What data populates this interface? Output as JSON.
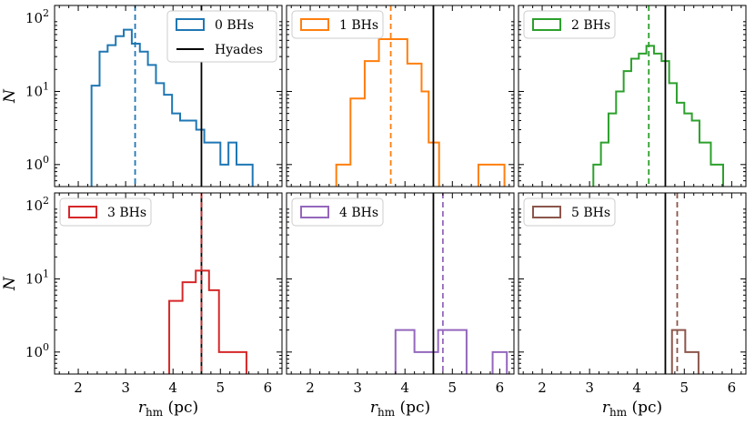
{
  "chart_data": [
    {
      "type": "histogram",
      "legend": "0 BHs",
      "color": "#1f77b4",
      "bins": [
        {
          "x0": 2.28,
          "x1": 2.45,
          "n": 12
        },
        {
          "x0": 2.45,
          "x1": 2.62,
          "n": 35
        },
        {
          "x0": 2.62,
          "x1": 2.79,
          "n": 43
        },
        {
          "x0": 2.79,
          "x1": 2.96,
          "n": 57
        },
        {
          "x0": 2.96,
          "x1": 3.13,
          "n": 70
        },
        {
          "x0": 3.13,
          "x1": 3.3,
          "n": 45
        },
        {
          "x0": 3.3,
          "x1": 3.47,
          "n": 35
        },
        {
          "x0": 3.47,
          "x1": 3.64,
          "n": 23
        },
        {
          "x0": 3.64,
          "x1": 3.81,
          "n": 13
        },
        {
          "x0": 3.81,
          "x1": 3.98,
          "n": 9
        },
        {
          "x0": 3.98,
          "x1": 4.15,
          "n": 5
        },
        {
          "x0": 4.15,
          "x1": 4.32,
          "n": 4
        },
        {
          "x0": 4.32,
          "x1": 4.49,
          "n": 4
        },
        {
          "x0": 4.49,
          "x1": 4.66,
          "n": 3
        },
        {
          "x0": 4.66,
          "x1": 4.83,
          "n": 2
        },
        {
          "x0": 4.83,
          "x1": 5.0,
          "n": 2
        },
        {
          "x0": 5.0,
          "x1": 5.17,
          "n": 1
        },
        {
          "x0": 5.17,
          "x1": 5.34,
          "n": 2
        },
        {
          "x0": 5.34,
          "x1": 5.51,
          "n": 1
        },
        {
          "x0": 5.51,
          "x1": 5.68,
          "n": 1
        },
        {
          "x0": 5.68,
          "x1": 5.85,
          "n": 0
        }
      ],
      "median": 3.2,
      "hyades": 4.6,
      "show_hyades_legend": true
    },
    {
      "type": "histogram",
      "legend": "1 BHs",
      "color": "#ff7f0e",
      "bins": [
        {
          "x0": 2.55,
          "x1": 2.85,
          "n": 1
        },
        {
          "x0": 2.85,
          "x1": 3.15,
          "n": 8
        },
        {
          "x0": 3.15,
          "x1": 3.45,
          "n": 26
        },
        {
          "x0": 3.45,
          "x1": 3.75,
          "n": 52
        },
        {
          "x0": 3.75,
          "x1": 4.05,
          "n": 52
        },
        {
          "x0": 4.05,
          "x1": 4.35,
          "n": 24
        },
        {
          "x0": 4.35,
          "x1": 4.5,
          "n": 10
        },
        {
          "x0": 4.5,
          "x1": 4.72,
          "n": 2
        },
        {
          "x0": 5.55,
          "x1": 6.1,
          "n": 1
        }
      ],
      "median": 3.7,
      "hyades": 4.6,
      "show_hyades_legend": false
    },
    {
      "type": "histogram",
      "legend": "2 BHs",
      "color": "#2ca02c",
      "bins": [
        {
          "x0": 3.08,
          "x1": 3.24,
          "n": 1
        },
        {
          "x0": 3.24,
          "x1": 3.4,
          "n": 2
        },
        {
          "x0": 3.4,
          "x1": 3.56,
          "n": 5
        },
        {
          "x0": 3.56,
          "x1": 3.72,
          "n": 10
        },
        {
          "x0": 3.72,
          "x1": 3.88,
          "n": 19
        },
        {
          "x0": 3.88,
          "x1": 4.04,
          "n": 28
        },
        {
          "x0": 4.04,
          "x1": 4.2,
          "n": 33
        },
        {
          "x0": 4.2,
          "x1": 4.36,
          "n": 42
        },
        {
          "x0": 4.36,
          "x1": 4.52,
          "n": 33
        },
        {
          "x0": 4.52,
          "x1": 4.68,
          "n": 26
        },
        {
          "x0": 4.68,
          "x1": 4.84,
          "n": 13
        },
        {
          "x0": 4.84,
          "x1": 5.0,
          "n": 7
        },
        {
          "x0": 5.0,
          "x1": 5.16,
          "n": 5
        },
        {
          "x0": 5.16,
          "x1": 5.32,
          "n": 4
        },
        {
          "x0": 5.32,
          "x1": 5.56,
          "n": 2
        },
        {
          "x0": 5.56,
          "x1": 5.82,
          "n": 1
        }
      ],
      "median": 4.25,
      "hyades": 4.6,
      "show_hyades_legend": false
    },
    {
      "type": "histogram",
      "legend": "3 BHs",
      "color": "#d62728",
      "bins": [
        {
          "x0": 3.92,
          "x1": 4.2,
          "n": 5
        },
        {
          "x0": 4.2,
          "x1": 4.48,
          "n": 9
        },
        {
          "x0": 4.48,
          "x1": 4.76,
          "n": 13
        },
        {
          "x0": 4.76,
          "x1": 4.97,
          "n": 7
        },
        {
          "x0": 4.97,
          "x1": 5.55,
          "n": 1
        }
      ],
      "median": 4.6,
      "hyades": 4.6,
      "show_hyades_legend": false
    },
    {
      "type": "histogram",
      "legend": "4 BHs",
      "color": "#9467bd",
      "bins": [
        {
          "x0": 3.8,
          "x1": 4.2,
          "n": 2
        },
        {
          "x0": 4.2,
          "x1": 4.7,
          "n": 1
        },
        {
          "x0": 4.7,
          "x1": 5.3,
          "n": 2
        },
        {
          "x0": 5.85,
          "x1": 6.15,
          "n": 1
        }
      ],
      "median": 4.8,
      "hyades": 4.6,
      "show_hyades_legend": false
    },
    {
      "type": "histogram",
      "legend": "5 BHs",
      "color": "#8c564b",
      "bins": [
        {
          "x0": 4.74,
          "x1": 5.02,
          "n": 2
        },
        {
          "x0": 5.02,
          "x1": 5.3,
          "n": 1
        }
      ],
      "median": 4.85,
      "hyades": 4.6,
      "show_hyades_legend": false
    }
  ],
  "axes": {
    "xlim": [
      1.5,
      6.3
    ],
    "ylim": [
      0.5,
      150
    ],
    "yscale": "log",
    "xticks": [
      2,
      3,
      4,
      5,
      6
    ],
    "xtick_labels": [
      "2",
      "3",
      "4",
      "5",
      "6"
    ],
    "ytick_label_parts": [
      {
        "base": "10",
        "exp": "0",
        "value": 1
      },
      {
        "base": "10",
        "exp": "1",
        "value": 10
      },
      {
        "base": "10",
        "exp": "2",
        "value": 100
      }
    ],
    "ylabel": "N",
    "xlabel_main": "r",
    "xlabel_sub": "hm",
    "xlabel_unit": " (pc)",
    "hyades_label": "Hyades",
    "hyades_color": "#000000"
  }
}
